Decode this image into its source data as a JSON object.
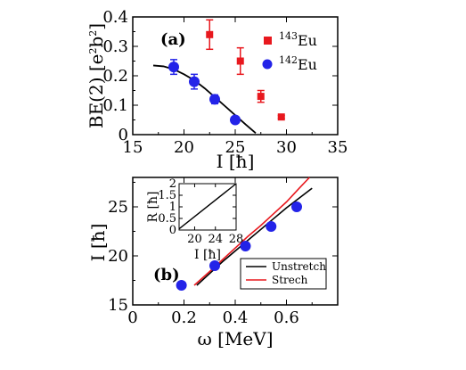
{
  "chart_data": [
    {
      "type": "scatter",
      "panel_label": "(a)",
      "xlabel": "I [ħ]",
      "ylabel": "BE(2) [e²b²]",
      "ylabel_parts": [
        "BE(2) [e",
        "2",
        "b",
        "2",
        "]"
      ],
      "xlim": [
        15,
        35
      ],
      "ylim": [
        0,
        0.4
      ],
      "xticks": [
        "15",
        "20",
        "25",
        "30",
        "35"
      ],
      "yticks": [
        "0",
        "0.1",
        "0.2",
        "0.3",
        "0.4"
      ],
      "legend_position": "top-right",
      "series": [
        {
          "name": "143Eu",
          "name_mass": "143",
          "name_el": "Eu",
          "color": "#e8181e",
          "marker": "square",
          "x": [
            22.5,
            25.5,
            27.5,
            29.5
          ],
          "y": [
            0.34,
            0.25,
            0.13,
            0.06
          ],
          "err": [
            0.05,
            0.045,
            0.02,
            0.005
          ]
        },
        {
          "name": "142Eu",
          "name_mass": "142",
          "name_el": "Eu",
          "color": "#2323e8",
          "marker": "circle",
          "x": [
            19,
            21,
            23,
            25
          ],
          "y": [
            0.23,
            0.18,
            0.12,
            0.05
          ],
          "err": [
            0.025,
            0.025,
            0.015,
            0.003
          ]
        }
      ],
      "curve": {
        "color": "#000000",
        "x": [
          17,
          18,
          19,
          20,
          21,
          22,
          23,
          24,
          25,
          26,
          27
        ],
        "y": [
          0.235,
          0.232,
          0.222,
          0.205,
          0.185,
          0.158,
          0.128,
          0.097,
          0.066,
          0.035,
          0.005
        ]
      }
    },
    {
      "type": "line",
      "panel_label": "(b)",
      "xlabel": "ω [MeV]",
      "ylabel": "I [ħ]",
      "xlim": [
        0,
        0.8
      ],
      "ylim": [
        15,
        28
      ],
      "xticks": [
        "0",
        "0.2",
        "0.4",
        "0.6"
      ],
      "yticks": [
        "15",
        "20",
        "25"
      ],
      "legend_position": "bottom-right",
      "points": {
        "color": "#2323e8",
        "x": [
          0.19,
          0.32,
          0.44,
          0.54,
          0.64
        ],
        "y": [
          17,
          19,
          21,
          23,
          25
        ]
      },
      "series": [
        {
          "name": "Unstretch",
          "color": "#000000",
          "x": [
            0.25,
            0.3,
            0.35,
            0.4,
            0.45,
            0.5,
            0.55,
            0.6,
            0.65,
            0.7
          ],
          "y": [
            17.0,
            18.2,
            19.4,
            20.5,
            21.6,
            22.7,
            23.8,
            24.9,
            25.9,
            26.9
          ]
        },
        {
          "name": "Strech",
          "color": "#e8181e",
          "x": [
            0.24,
            0.3,
            0.35,
            0.4,
            0.45,
            0.5,
            0.55,
            0.6,
            0.65,
            0.69
          ],
          "y": [
            17.0,
            18.4,
            19.6,
            20.8,
            22.0,
            23.1,
            24.3,
            25.5,
            26.9,
            28.0
          ]
        }
      ],
      "inset": {
        "xlabel": "I [ħ]",
        "ylabel": "R [ħ]",
        "xlim": [
          17,
          28
        ],
        "ylim": [
          0,
          2
        ],
        "xticks": [
          "20",
          "24",
          "28"
        ],
        "yticks": [
          "0",
          "0.5",
          "1",
          "1.5",
          "2"
        ],
        "line": {
          "color": "#000000",
          "x": [
            17,
            28
          ],
          "y": [
            0.05,
            2.0
          ]
        }
      }
    }
  ]
}
